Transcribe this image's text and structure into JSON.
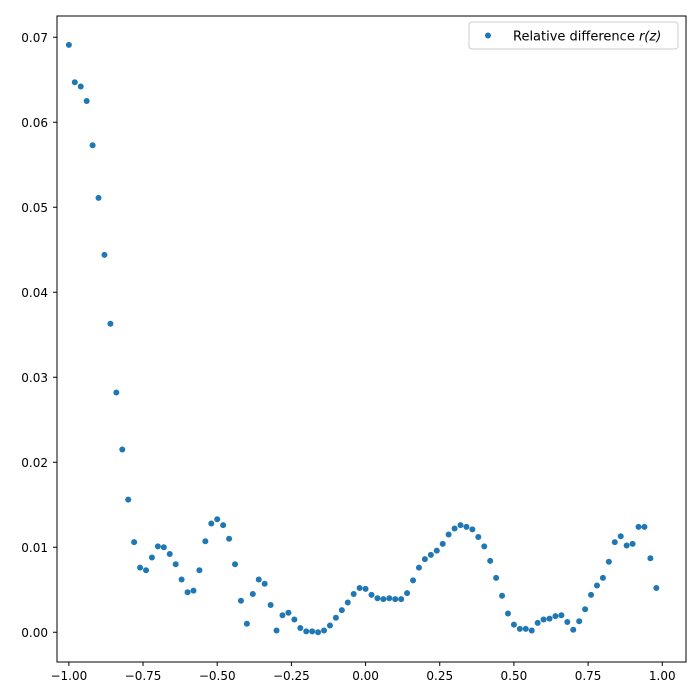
{
  "chart_data": {
    "type": "scatter",
    "title": "",
    "xlabel": "",
    "ylabel": "",
    "xlim": [
      -1.04,
      1.08
    ],
    "ylim": [
      -0.0035,
      0.0725
    ],
    "grid": false,
    "legend_position": "top-right",
    "marker_color": "#1f77b4",
    "x_ticks": [
      {
        "value": -1.0,
        "label": "−1.00"
      },
      {
        "value": -0.75,
        "label": "−0.75"
      },
      {
        "value": -0.5,
        "label": "−0.50"
      },
      {
        "value": -0.25,
        "label": "−0.25"
      },
      {
        "value": 0.0,
        "label": "0.00"
      },
      {
        "value": 0.25,
        "label": "0.25"
      },
      {
        "value": 0.5,
        "label": "0.50"
      },
      {
        "value": 0.75,
        "label": "0.75"
      },
      {
        "value": 1.0,
        "label": "1.00"
      }
    ],
    "y_ticks": [
      {
        "value": 0.0,
        "label": "0.00"
      },
      {
        "value": 0.01,
        "label": "0.01"
      },
      {
        "value": 0.02,
        "label": "0.02"
      },
      {
        "value": 0.03,
        "label": "0.03"
      },
      {
        "value": 0.04,
        "label": "0.04"
      },
      {
        "value": 0.05,
        "label": "0.05"
      },
      {
        "value": 0.06,
        "label": "0.06"
      },
      {
        "value": 0.07,
        "label": "0.07"
      }
    ],
    "series": [
      {
        "name": "Relative difference r(z)",
        "color": "#1f77b4",
        "x": [
          -1.0,
          -0.98,
          -0.96,
          -0.94,
          -0.92,
          -0.9,
          -0.88,
          -0.86,
          -0.84,
          -0.82,
          -0.8,
          -0.78,
          -0.76,
          -0.74,
          -0.72,
          -0.7,
          -0.68,
          -0.66,
          -0.64,
          -0.62,
          -0.6,
          -0.58,
          -0.56,
          -0.54,
          -0.52,
          -0.5,
          -0.48,
          -0.46,
          -0.44,
          -0.42,
          -0.4,
          -0.38,
          -0.36,
          -0.34,
          -0.32,
          -0.3,
          -0.28,
          -0.26,
          -0.24,
          -0.22,
          -0.2,
          -0.18,
          -0.16,
          -0.14,
          -0.12,
          -0.1,
          -0.08,
          -0.06,
          -0.04,
          -0.02,
          0.0,
          0.02,
          0.04,
          0.06,
          0.08,
          0.1,
          0.12,
          0.14,
          0.16,
          0.18,
          0.2,
          0.22,
          0.24,
          0.26,
          0.28,
          0.3,
          0.32,
          0.34,
          0.36,
          0.38,
          0.4,
          0.42,
          0.44,
          0.46,
          0.48,
          0.5,
          0.52,
          0.54,
          0.56,
          0.58,
          0.6,
          0.62,
          0.64,
          0.66,
          0.68,
          0.7,
          0.72,
          0.74,
          0.76,
          0.78,
          0.8,
          0.82,
          0.84,
          0.86,
          0.88,
          0.9,
          0.92,
          0.94,
          0.96,
          0.98
        ],
        "y": [
          0.0691,
          0.0647,
          0.0642,
          0.0625,
          0.0573,
          0.0511,
          0.0444,
          0.0363,
          0.0282,
          0.0215,
          0.0156,
          0.0106,
          0.0076,
          0.0073,
          0.0088,
          0.0101,
          0.01,
          0.0092,
          0.008,
          0.0062,
          0.0047,
          0.0049,
          0.0073,
          0.0107,
          0.0128,
          0.0133,
          0.0126,
          0.011,
          0.008,
          0.0037,
          0.001,
          0.0045,
          0.0062,
          0.0057,
          0.0032,
          0.0002,
          0.002,
          0.0023,
          0.0015,
          0.0005,
          0.0001,
          0.0001,
          0.0,
          0.0002,
          0.0008,
          0.0017,
          0.0026,
          0.0035,
          0.0045,
          0.0052,
          0.0051,
          0.0044,
          0.004,
          0.0039,
          0.004,
          0.0039,
          0.0039,
          0.0046,
          0.0061,
          0.0076,
          0.0086,
          0.0091,
          0.0096,
          0.0104,
          0.0115,
          0.0122,
          0.0126,
          0.0124,
          0.0121,
          0.0112,
          0.0101,
          0.0084,
          0.0064,
          0.0043,
          0.0022,
          0.0009,
          0.0004,
          0.0004,
          0.0002,
          0.0011,
          0.0015,
          0.0016,
          0.0019,
          0.002,
          0.0012,
          0.0003,
          0.0013,
          0.0027,
          0.0044,
          0.0055,
          0.0064,
          0.0083,
          0.0106,
          0.0113,
          0.0102,
          0.0104,
          0.0124,
          0.0124,
          0.0087,
          0.0052
        ]
      }
    ],
    "legend": {
      "label_prefix": "Relative difference ",
      "label_math": "r(z)"
    }
  }
}
